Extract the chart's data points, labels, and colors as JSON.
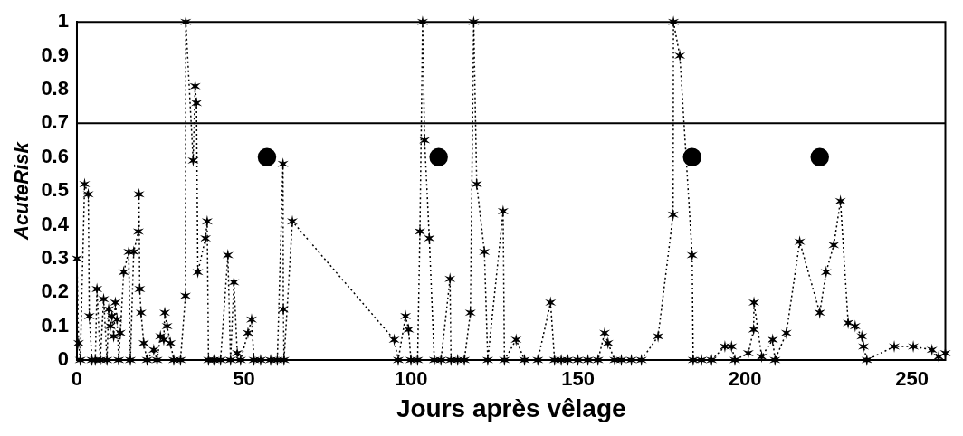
{
  "chart_data": {
    "type": "line",
    "xlabel": "Jours après vêlage",
    "ylabel": "AcuteRisk",
    "xlim": [
      0,
      260
    ],
    "xticks": [
      0,
      50,
      100,
      150,
      200,
      250
    ],
    "ylim": [
      0,
      1
    ],
    "yticks": [
      0,
      0.1,
      0.2,
      0.3,
      0.4,
      0.5,
      0.6,
      0.7,
      0.8,
      0.9,
      1
    ],
    "grid": false,
    "legend": false,
    "series": [
      {
        "color": "#000000",
        "marker": "cross",
        "line_style": "dotted",
        "x": [
          0,
          0.5,
          1,
          2.3,
          3.4,
          3.7,
          4.5,
          5.5,
          6,
          7,
          8,
          9,
          9.5,
          10,
          10.5,
          11,
          11.5,
          12,
          12.5,
          13,
          14,
          15.5,
          16,
          17,
          18.4,
          18.6,
          18.8,
          19.2,
          20,
          21,
          23,
          24,
          25,
          26,
          26.3,
          27,
          28,
          29,
          31,
          32.5,
          32.6,
          34.8,
          35.4,
          35.8,
          36.2,
          38.5,
          39,
          39.4,
          41,
          43,
          45.2,
          46,
          47,
          48,
          49,
          51.2,
          52.3,
          53,
          55,
          58,
          60,
          61.7,
          61.8,
          62,
          64.5,
          95,
          96.2,
          98.4,
          99.3,
          100,
          102,
          102.7,
          103.5,
          104.1,
          105.5,
          107,
          109,
          111.7,
          112,
          114,
          116,
          117.8,
          118.8,
          119.7,
          122,
          123,
          127.6,
          128,
          131.5,
          134,
          138,
          141.8,
          143,
          145,
          147,
          150,
          153,
          156,
          158,
          159,
          161,
          163,
          166,
          169,
          174,
          178.5,
          178.6,
          180.5,
          184.2,
          184.5,
          187,
          190,
          194,
          196,
          197,
          201,
          202.6,
          202.7,
          205,
          208.3,
          209,
          212.4,
          216.4,
          222.4,
          224.3,
          226.6,
          228.6,
          230.9,
          233,
          235,
          235.5,
          236.5,
          244.7,
          250.4,
          256,
          258,
          260
        ],
        "values": [
          0.3,
          0.05,
          0,
          0.52,
          0.49,
          0.13,
          0,
          0,
          0.21,
          0,
          0.18,
          0,
          0.15,
          0.1,
          0.13,
          0.07,
          0.17,
          0.12,
          0,
          0.08,
          0.26,
          0.32,
          0,
          0.32,
          0.38,
          0.49,
          0.21,
          0.14,
          0.05,
          0,
          0.03,
          0,
          0.07,
          0.06,
          0.14,
          0.1,
          0.05,
          0,
          0,
          0.19,
          1,
          0.59,
          0.81,
          0.76,
          0.26,
          0.36,
          0.41,
          0,
          0,
          0,
          0.31,
          0,
          0.23,
          0.02,
          0,
          0.08,
          0.12,
          0,
          0,
          0,
          0,
          0.58,
          0.15,
          0,
          0.41,
          0.06,
          0,
          0.13,
          0.09,
          0,
          0,
          0.38,
          1,
          0.65,
          0.36,
          0,
          0,
          0.24,
          0,
          0,
          0,
          0.14,
          1,
          0.52,
          0.32,
          0,
          0.44,
          0,
          0.06,
          0,
          0,
          0.17,
          0,
          0,
          0,
          0,
          0,
          0,
          0.08,
          0.05,
          0,
          0,
          0,
          0,
          0.07,
          0.43,
          1,
          0.9,
          0.31,
          0,
          0,
          0,
          0.04,
          0.04,
          0,
          0.02,
          0.09,
          0.17,
          0.01,
          0.06,
          0,
          0.08,
          0.35,
          0.14,
          0.26,
          0.34,
          0.47,
          0.11,
          0.1,
          0.07,
          0.04,
          0,
          0.04,
          0.04,
          0.03,
          0.01,
          0.02
        ]
      },
      {
        "type": "scatter",
        "color": "#000000",
        "marker": "circle",
        "x": [
          56.9,
          108.3,
          184.2,
          222.4
        ],
        "values": [
          0.6,
          0.6,
          0.6,
          0.6
        ]
      }
    ],
    "ref_lines": [
      {
        "axis": "y",
        "value": 0.7,
        "color": "#000000",
        "line_style": "solid"
      }
    ]
  }
}
